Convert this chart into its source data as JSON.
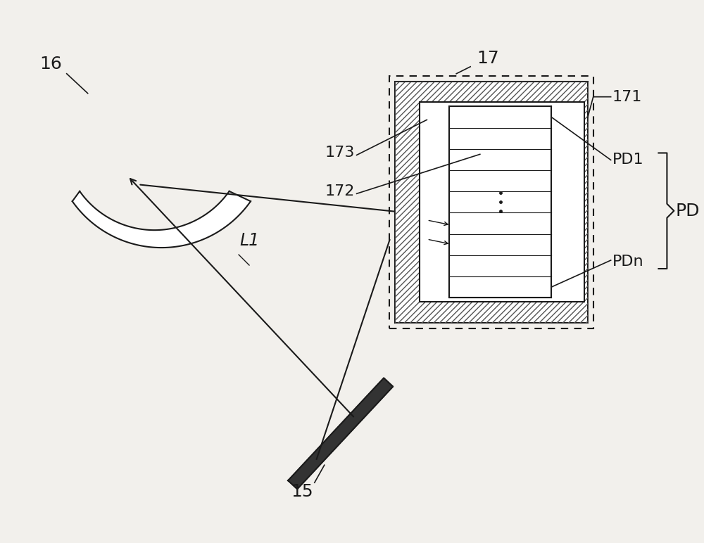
{
  "bg_color": "#f2f0ec",
  "line_color": "#1a1a1a",
  "label_16": "16",
  "label_15": "15",
  "label_17": "17",
  "label_171": "171",
  "label_172": "172",
  "label_173": "173",
  "label_L1": "L1",
  "label_PD1": "PD1",
  "label_PDn": "PDn",
  "label_PD": "PD",
  "font_size": 16
}
